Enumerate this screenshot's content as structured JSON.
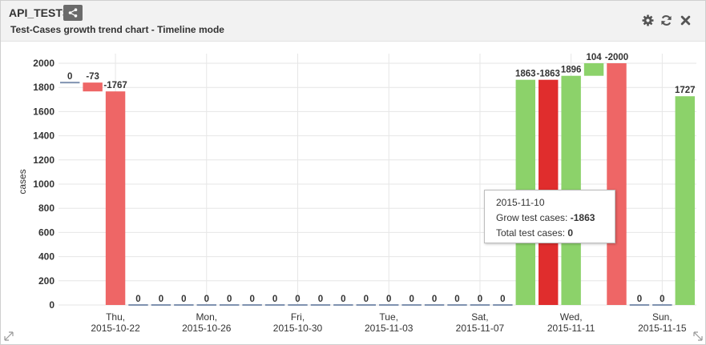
{
  "widget": {
    "title": "API_TESTS",
    "subtitle": "Test-Cases growth trend chart - Timeline mode",
    "share_icon": "share-icon",
    "tools": [
      {
        "name": "settings",
        "icon": "gear-icon"
      },
      {
        "name": "refresh",
        "icon": "refresh-icon"
      },
      {
        "name": "close",
        "icon": "close-icon"
      }
    ]
  },
  "tooltip": {
    "date": "2015-11-10",
    "grow_label": "Grow test cases:",
    "grow_value": "-1863",
    "total_label": "Total test cases:",
    "total_value": "0"
  },
  "chart_data": {
    "type": "bar",
    "ylabel": "cases",
    "ylim": [
      0,
      2000
    ],
    "yticks": [
      0,
      200,
      400,
      600,
      800,
      1000,
      1200,
      1400,
      1600,
      1800,
      2000
    ],
    "grid": true,
    "x_tick_labels": [
      {
        "day": "Thu,",
        "date": "2015-10-22",
        "index": 2
      },
      {
        "day": "Mon,",
        "date": "2015-10-26",
        "index": 6
      },
      {
        "day": "Fri,",
        "date": "2015-10-30",
        "index": 10
      },
      {
        "day": "Tue,",
        "date": "2015-11-03",
        "index": 14
      },
      {
        "day": "Sat,",
        "date": "2015-11-07",
        "index": 18
      },
      {
        "day": "Wed,",
        "date": "2015-11-11",
        "index": 22
      },
      {
        "day": "Sun,",
        "date": "2015-11-15",
        "index": 26
      }
    ],
    "colors": {
      "increase": "#8cd26a",
      "decrease": "#ee6666",
      "flat": "#7f92b0",
      "highlight": "#e02d2d"
    },
    "bars": [
      {
        "date": "2015-10-20",
        "label": "0",
        "low": 1840,
        "high": 1840,
        "kind": "flat"
      },
      {
        "date": "2015-10-21",
        "label": "-73",
        "low": 1767,
        "high": 1840,
        "kind": "decrease"
      },
      {
        "date": "2015-10-22",
        "label": "-1767",
        "low": 0,
        "high": 1767,
        "kind": "decrease"
      },
      {
        "date": "2015-10-23",
        "label": "0",
        "low": 0,
        "high": 0,
        "kind": "flat"
      },
      {
        "date": "2015-10-24",
        "label": "0",
        "low": 0,
        "high": 0,
        "kind": "flat"
      },
      {
        "date": "2015-10-25",
        "label": "0",
        "low": 0,
        "high": 0,
        "kind": "flat"
      },
      {
        "date": "2015-10-26",
        "label": "0",
        "low": 0,
        "high": 0,
        "kind": "flat"
      },
      {
        "date": "2015-10-27",
        "label": "0",
        "low": 0,
        "high": 0,
        "kind": "flat"
      },
      {
        "date": "2015-10-28",
        "label": "0",
        "low": 0,
        "high": 0,
        "kind": "flat"
      },
      {
        "date": "2015-10-29",
        "label": "0",
        "low": 0,
        "high": 0,
        "kind": "flat"
      },
      {
        "date": "2015-10-30",
        "label": "0",
        "low": 0,
        "high": 0,
        "kind": "flat"
      },
      {
        "date": "2015-10-31",
        "label": "0",
        "low": 0,
        "high": 0,
        "kind": "flat"
      },
      {
        "date": "2015-11-01",
        "label": "0",
        "low": 0,
        "high": 0,
        "kind": "flat"
      },
      {
        "date": "2015-11-02",
        "label": "0",
        "low": 0,
        "high": 0,
        "kind": "flat"
      },
      {
        "date": "2015-11-03",
        "label": "0",
        "low": 0,
        "high": 0,
        "kind": "flat"
      },
      {
        "date": "2015-11-04",
        "label": "0",
        "low": 0,
        "high": 0,
        "kind": "flat"
      },
      {
        "date": "2015-11-05",
        "label": "0",
        "low": 0,
        "high": 0,
        "kind": "flat"
      },
      {
        "date": "2015-11-06",
        "label": "0",
        "low": 0,
        "high": 0,
        "kind": "flat"
      },
      {
        "date": "2015-11-07",
        "label": "0",
        "low": 0,
        "high": 0,
        "kind": "flat"
      },
      {
        "date": "2015-11-08",
        "label": "0",
        "low": 0,
        "high": 0,
        "kind": "flat"
      },
      {
        "date": "2015-11-09",
        "label": "1863",
        "low": 0,
        "high": 1863,
        "kind": "increase"
      },
      {
        "date": "2015-11-10",
        "label": "-1863",
        "low": 0,
        "high": 1863,
        "kind": "highlight"
      },
      {
        "date": "2015-11-11",
        "label": "1896",
        "low": 0,
        "high": 1896,
        "kind": "increase"
      },
      {
        "date": "2015-11-12",
        "label": "104",
        "low": 1896,
        "high": 2000,
        "kind": "increase"
      },
      {
        "date": "2015-11-13",
        "label": "-2000",
        "low": 0,
        "high": 2000,
        "kind": "decrease"
      },
      {
        "date": "2015-11-14",
        "label": "0",
        "low": 0,
        "high": 0,
        "kind": "flat"
      },
      {
        "date": "2015-11-15",
        "label": "0",
        "low": 0,
        "high": 0,
        "kind": "flat"
      },
      {
        "date": "2015-11-16",
        "label": "1727",
        "low": 0,
        "high": 1727,
        "kind": "increase"
      }
    ]
  }
}
